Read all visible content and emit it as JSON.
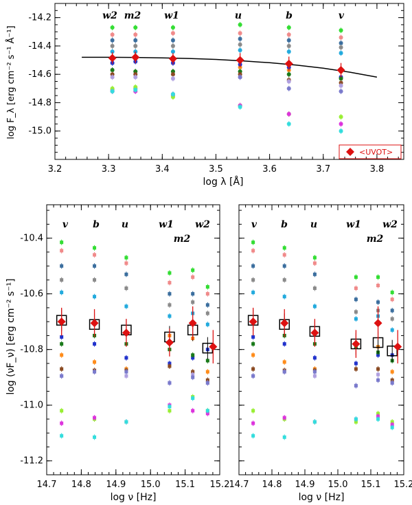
{
  "chart_data": [
    {
      "type": "scatter",
      "xlabel": "log λ [Å]",
      "ylabel": "log F_λ [erg cm⁻² s⁻¹ Å⁻¹]",
      "xlim": [
        3.2,
        3.85
      ],
      "ylim": [
        -15.2,
        -14.1
      ],
      "x_ticks": [
        "3.2",
        "3.3",
        "3.4",
        "3.5",
        "3.6",
        "3.7",
        "3.8"
      ],
      "y_ticks": [
        "-15.0",
        "-14.8",
        "-14.6",
        "-14.4",
        "-14.2"
      ],
      "band_labels": [
        "w2",
        "m2",
        "w1",
        "u",
        "b",
        "v"
      ],
      "band_x": [
        3.307,
        3.35,
        3.42,
        3.545,
        3.636,
        3.733
      ],
      "legend": {
        "label": "<UVOT>",
        "position": "bottom-right",
        "color": "#dd1111"
      },
      "colors": [
        "#33dd33",
        "#f08a8a",
        "#3b6e9e",
        "#8a8a8a",
        "#22aadd",
        "#ff8c1a",
        "#2233cc",
        "#1a7a1a",
        "#8a4a22",
        "#b0a0e0",
        "#7a7acc",
        "#99ee33",
        "#dd33dd",
        "#33dddd"
      ],
      "series": [
        {
          "values": [
            -14.27,
            -14.27,
            -14.27,
            -14.25,
            -14.27,
            -14.29
          ]
        },
        {
          "values": [
            -14.32,
            -14.32,
            -14.31,
            -14.31,
            -14.32,
            -14.34
          ]
        },
        {
          "values": [
            -14.36,
            -14.36,
            -14.36,
            -14.35,
            -14.36,
            -14.38
          ]
        },
        {
          "values": [
            -14.4,
            -14.4,
            -14.4,
            -14.39,
            -14.4,
            -14.41
          ]
        },
        {
          "values": [
            -14.44,
            -14.44,
            -14.44,
            -14.43,
            -14.44,
            -14.45
          ]
        },
        {
          "values": [
            -14.48,
            -14.49,
            -14.5,
            -14.55,
            -14.57,
            -14.58
          ]
        },
        {
          "values": [
            -14.52,
            -14.51,
            -14.52,
            -14.53,
            -14.55,
            -14.62
          ]
        },
        {
          "values": [
            -14.57,
            -14.58,
            -14.58,
            -14.58,
            -14.6,
            -14.63
          ]
        },
        {
          "values": [
            -14.6,
            -14.6,
            -14.6,
            -14.6,
            -14.64,
            -14.66
          ]
        },
        {
          "values": [
            -14.62,
            -14.62,
            -14.63,
            -14.62,
            -14.65,
            -14.68
          ]
        },
        {
          "values": [
            -14.71,
            -14.7,
            -14.75,
            -14.62,
            -14.7,
            -14.72
          ]
        },
        {
          "values": [
            -14.7,
            -14.69,
            -14.76,
            -14.82,
            -14.88,
            -14.9
          ]
        },
        {
          "values": [
            -14.72,
            -14.72,
            -14.74,
            -14.82,
            -14.88,
            -14.95
          ]
        },
        {
          "values": [
            -14.72,
            -14.71,
            -14.74,
            -14.83,
            -14.95,
            -15.0
          ]
        }
      ],
      "mean": {
        "name": "<UVOT>",
        "values": [
          -14.485,
          -14.48,
          -14.49,
          -14.5,
          -14.525,
          -14.57
        ],
        "errors": [
          0.04,
          0.04,
          0.04,
          0.05,
          0.05,
          0.05
        ]
      },
      "model_line": {
        "x": [
          3.25,
          3.3,
          3.35,
          3.4,
          3.45,
          3.5,
          3.55,
          3.6,
          3.65,
          3.7,
          3.75,
          3.8
        ],
        "y": [
          -14.48,
          -14.48,
          -14.481,
          -14.484,
          -14.488,
          -14.495,
          -14.505,
          -14.518,
          -14.535,
          -14.557,
          -14.585,
          -14.62
        ]
      }
    },
    {
      "type": "scatter",
      "xlabel": "log ν [Hz]",
      "ylabel": "log (νF_ν) [erg cm⁻² s⁻¹]",
      "xlim": [
        14.7,
        15.2
      ],
      "ylim": [
        -11.25,
        -10.28
      ],
      "x_ticks": [
        "14.7",
        "14.8",
        "14.9",
        "15.0",
        "15.1",
        "15.2"
      ],
      "y_ticks": [
        "-11.2",
        "-11.0",
        "-10.8",
        "-10.6",
        "-10.4"
      ],
      "band_labels": [
        "v",
        "b",
        "u",
        "w1",
        "w2",
        "m2"
      ],
      "band_x": [
        14.743,
        14.838,
        14.93,
        15.055,
        15.122,
        15.165
      ],
      "colors": [
        "#33dd33",
        "#f08a8a",
        "#3b6e9e",
        "#8a8a8a",
        "#22aadd",
        "#ff8c1a",
        "#2233cc",
        "#1a7a1a",
        "#8a4a22",
        "#b0a0e0",
        "#7a7acc",
        "#99ee33",
        "#dd33dd",
        "#33dddd"
      ],
      "series": [
        {
          "values": [
            -10.415,
            -10.435,
            -10.47,
            -10.525,
            -10.515,
            -10.575
          ]
        },
        {
          "values": [
            -10.445,
            -10.46,
            -10.49,
            -10.56,
            -10.54,
            -10.6
          ]
        },
        {
          "values": [
            -10.5,
            -10.5,
            -10.53,
            -10.6,
            -10.6,
            -10.64
          ]
        },
        {
          "values": [
            -10.55,
            -10.55,
            -10.58,
            -10.64,
            -10.63,
            -10.67
          ]
        },
        {
          "values": [
            -10.595,
            -10.61,
            -10.645,
            -10.68,
            -10.67,
            -10.71
          ]
        },
        {
          "values": [
            -10.82,
            -10.845,
            -10.87,
            -10.75,
            -10.76,
            -10.88
          ]
        },
        {
          "values": [
            -10.755,
            -10.78,
            -10.83,
            -10.85,
            -10.83,
            -10.8
          ]
        },
        {
          "values": [
            -10.78,
            -10.75,
            -10.78,
            -10.8,
            -10.82,
            -10.84
          ]
        },
        {
          "values": [
            -10.87,
            -10.875,
            -10.875,
            -10.86,
            -10.88,
            -10.91
          ]
        },
        {
          "values": [
            -10.895,
            -10.88,
            -10.895,
            -10.92,
            -10.89,
            -10.92
          ]
        },
        {
          "values": [
            -10.895,
            -10.88,
            -10.88,
            -10.92,
            -10.9,
            -10.92
          ]
        },
        {
          "values": [
            -11.02,
            -11.05,
            -11.06,
            -11.02,
            -10.97,
            -11.02
          ]
        },
        {
          "values": [
            -11.065,
            -11.045,
            -11.06,
            -11.0,
            -11.02,
            -11.03
          ]
        },
        {
          "values": [
            -11.11,
            -11.115,
            -11.06,
            -11.005,
            -10.975,
            -11.02
          ]
        }
      ],
      "mean": {
        "values": [
          -10.7,
          -10.705,
          -10.74,
          -10.775,
          -10.705,
          -10.79
        ],
        "errors": [
          0.05,
          0.05,
          0.05,
          0.05,
          0.06,
          0.06
        ]
      },
      "model_boxes": {
        "values": [
          -10.695,
          -10.71,
          -10.73,
          -10.755,
          -10.73,
          -10.795
        ]
      }
    },
    {
      "type": "scatter",
      "xlabel": "log ν [Hz]",
      "xlim": [
        14.7,
        15.2
      ],
      "ylim": [
        -11.25,
        -10.28
      ],
      "x_ticks": [
        "14.7",
        "14.8",
        "14.9",
        "15.0",
        "15.1",
        "15.2"
      ],
      "band_labels": [
        "v",
        "b",
        "u",
        "w1",
        "w2",
        "m2"
      ],
      "band_x": [
        14.743,
        14.838,
        14.93,
        15.055,
        15.122,
        15.165
      ],
      "colors": [
        "#33dd33",
        "#f08a8a",
        "#3b6e9e",
        "#8a8a8a",
        "#22aadd",
        "#ff8c1a",
        "#2233cc",
        "#1a7a1a",
        "#8a4a22",
        "#b0a0e0",
        "#7a7acc",
        "#99ee33",
        "#dd33dd",
        "#33dddd"
      ],
      "series": [
        {
          "values": [
            -10.415,
            -10.435,
            -10.47,
            -10.54,
            -10.54,
            -10.595
          ]
        },
        {
          "values": [
            -10.445,
            -10.46,
            -10.49,
            -10.58,
            -10.57,
            -10.62
          ]
        },
        {
          "values": [
            -10.5,
            -10.5,
            -10.53,
            -10.62,
            -10.63,
            -10.66
          ]
        },
        {
          "values": [
            -10.55,
            -10.55,
            -10.58,
            -10.665,
            -10.66,
            -10.69
          ]
        },
        {
          "values": [
            -10.595,
            -10.61,
            -10.645,
            -10.69,
            -10.68,
            -10.73
          ]
        },
        {
          "values": [
            -10.82,
            -10.845,
            -10.87,
            -10.78,
            -10.79,
            -10.88
          ]
        },
        {
          "values": [
            -10.755,
            -10.78,
            -10.83,
            -10.85,
            -10.82,
            -10.82
          ]
        },
        {
          "values": [
            -10.78,
            -10.75,
            -10.78,
            -10.79,
            -10.81,
            -10.84
          ]
        },
        {
          "values": [
            -10.87,
            -10.875,
            -10.875,
            -10.87,
            -10.87,
            -10.91
          ]
        },
        {
          "values": [
            -10.895,
            -10.88,
            -10.895,
            -10.93,
            -10.89,
            -10.92
          ]
        },
        {
          "values": [
            -10.895,
            -10.88,
            -10.88,
            -10.93,
            -10.91,
            -10.92
          ]
        },
        {
          "values": [
            -11.02,
            -11.05,
            -11.06,
            -11.06,
            -11.03,
            -11.06
          ]
        },
        {
          "values": [
            -11.065,
            -11.045,
            -11.06,
            -11.05,
            -11.04,
            -11.07
          ]
        },
        {
          "values": [
            -11.11,
            -11.115,
            -11.06,
            -11.05,
            -11.05,
            -11.08
          ]
        }
      ],
      "mean": {
        "values": [
          -10.7,
          -10.705,
          -10.74,
          -10.78,
          -10.705,
          -10.79
        ],
        "errors": [
          0.05,
          0.05,
          0.05,
          0.05,
          0.06,
          0.06
        ]
      },
      "model_boxes": {
        "values": [
          -10.695,
          -10.71,
          -10.735,
          -10.78,
          -10.775,
          -10.805
        ]
      }
    }
  ]
}
